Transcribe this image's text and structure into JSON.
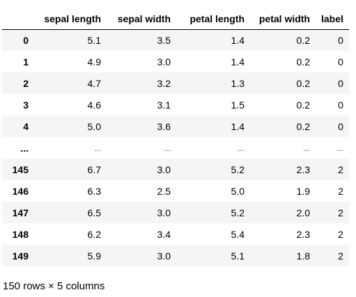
{
  "table": {
    "index_header": "",
    "columns": [
      "sepal length",
      "sepal width",
      "petal length",
      "petal width",
      "label"
    ],
    "rows": [
      {
        "index": "0",
        "values": [
          "5.1",
          "3.5",
          "1.4",
          "0.2",
          "0"
        ]
      },
      {
        "index": "1",
        "values": [
          "4.9",
          "3.0",
          "1.4",
          "0.2",
          "0"
        ]
      },
      {
        "index": "2",
        "values": [
          "4.7",
          "3.2",
          "1.3",
          "0.2",
          "0"
        ]
      },
      {
        "index": "3",
        "values": [
          "4.6",
          "3.1",
          "1.5",
          "0.2",
          "0"
        ]
      },
      {
        "index": "4",
        "values": [
          "5.0",
          "3.6",
          "1.4",
          "0.2",
          "0"
        ]
      },
      {
        "index": "...",
        "values": [
          "...",
          "...",
          "...",
          "...",
          "..."
        ]
      },
      {
        "index": "145",
        "values": [
          "6.7",
          "3.0",
          "5.2",
          "2.3",
          "2"
        ]
      },
      {
        "index": "146",
        "values": [
          "6.3",
          "2.5",
          "5.0",
          "1.9",
          "2"
        ]
      },
      {
        "index": "147",
        "values": [
          "6.5",
          "3.0",
          "5.2",
          "2.0",
          "2"
        ]
      },
      {
        "index": "148",
        "values": [
          "6.2",
          "3.4",
          "5.4",
          "2.3",
          "2"
        ]
      },
      {
        "index": "149",
        "values": [
          "5.9",
          "3.0",
          "5.1",
          "1.8",
          "2"
        ]
      }
    ]
  },
  "footer": {
    "shape_text": "150 rows × 5 columns"
  }
}
